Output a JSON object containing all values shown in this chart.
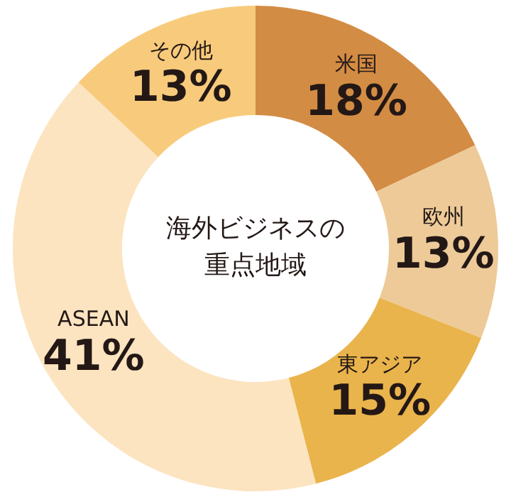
{
  "chart_data": {
    "type": "donut",
    "title": "海外ビジネスの重点地域",
    "categories": [
      "米国",
      "欧州",
      "東アジア",
      "ASEAN",
      "その他"
    ],
    "values": [
      18,
      13,
      15,
      41,
      13
    ],
    "value_labels": [
      "18%",
      "13%",
      "15%",
      "41%",
      "13%"
    ],
    "colors": [
      "#d38c44",
      "#edca98",
      "#eab44c",
      "#fce4c0",
      "#f8cb7c"
    ],
    "legend": false
  }
}
